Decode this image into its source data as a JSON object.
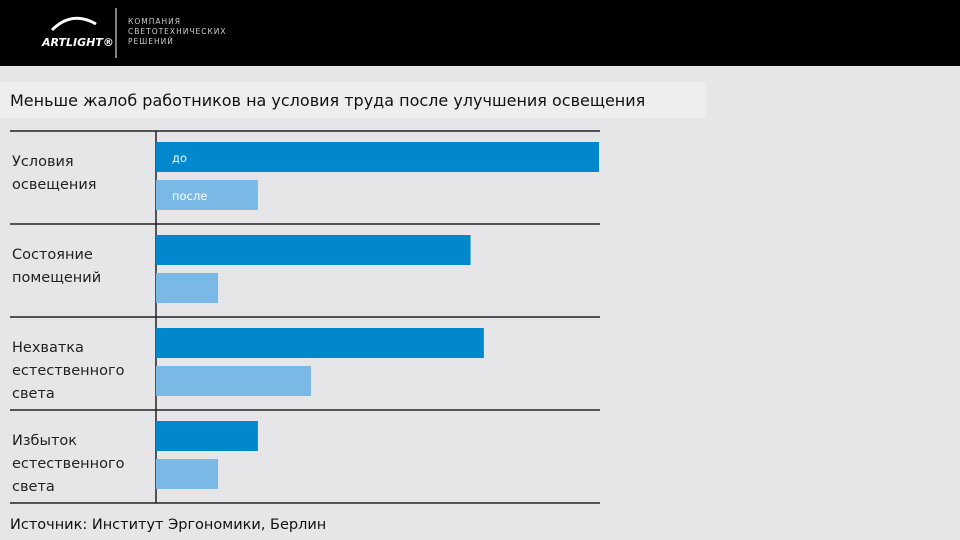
{
  "header": {
    "logo": "ARTLIGHT®",
    "tagline": [
      "КОМПАНИЯ",
      "СВЕТОТЕХНИЧЕСКИХ",
      "РЕШЕНИЙ"
    ]
  },
  "chart_data": {
    "type": "hbar",
    "title": "Меньше жалоб работников на условия труда после улучшения освещения",
    "source": "Источник: Институт Эргономики, Берлин",
    "categories": [
      "Условия освещения",
      "Состояние помещений",
      "Нехватка естественного света",
      "Избыток естественного света"
    ],
    "series": [
      {
        "name": "до",
        "color": "#0087cc",
        "values": [
          100,
          71,
          74,
          23
        ]
      },
      {
        "name": "после",
        "color": "#7ab8e6",
        "values": [
          23,
          14,
          35,
          14
        ]
      }
    ],
    "xlim": [
      0,
      100
    ]
  }
}
